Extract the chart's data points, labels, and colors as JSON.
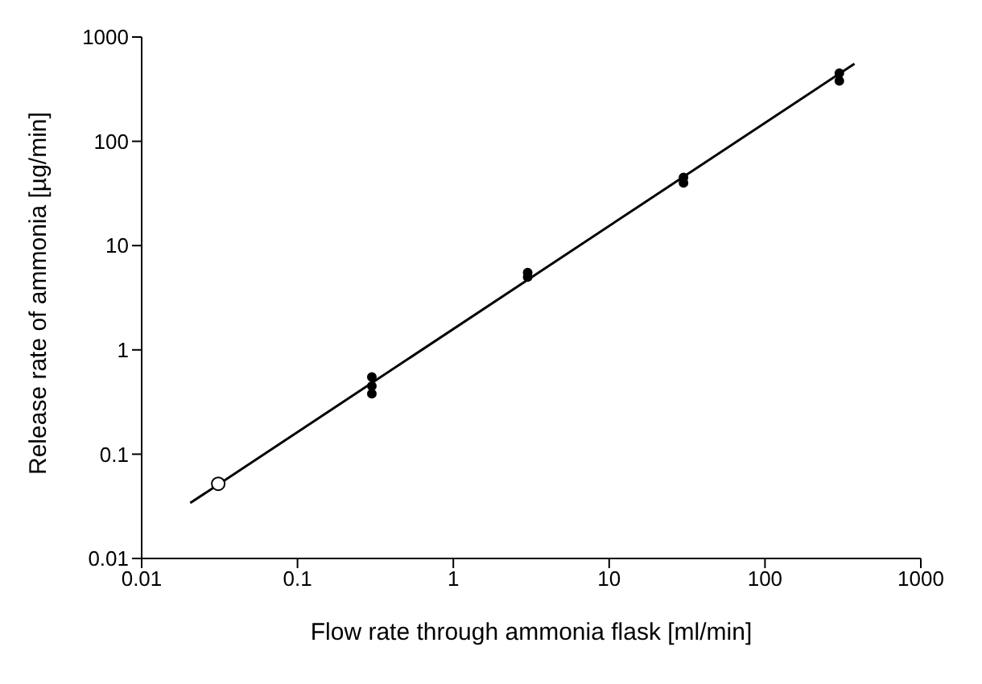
{
  "chart_data": {
    "type": "scatter",
    "xlabel": "Flow rate through ammonia flask [ml/min]",
    "ylabel": "Release rate of ammonia [µg/min]",
    "log": "xy",
    "grid": false,
    "legend": false,
    "xlim": [
      0.01,
      1000
    ],
    "ylim": [
      0.01,
      1000
    ],
    "xticks": [
      0.01,
      0.1,
      1,
      10,
      100,
      1000
    ],
    "yticks": [
      0.01,
      0.1,
      1,
      10,
      100,
      1000
    ],
    "series": [
      {
        "marker": "circle",
        "color": "#000000",
        "x": [
          0.3,
          0.3,
          0.3,
          3,
          3,
          30,
          30,
          300,
          300
        ],
        "values": [
          0.55,
          0.45,
          0.38,
          5.5,
          5,
          45,
          40,
          450,
          380
        ]
      },
      {
        "marker": "circle",
        "color": "#000000",
        "x": [
          0.031
        ],
        "values": [
          0.052
        ]
      },
      {
        "type": "line",
        "marker": "none",
        "color": "#000000",
        "x": [
          0.0205,
          375
        ],
        "values": [
          0.034,
          555
        ]
      }
    ]
  }
}
